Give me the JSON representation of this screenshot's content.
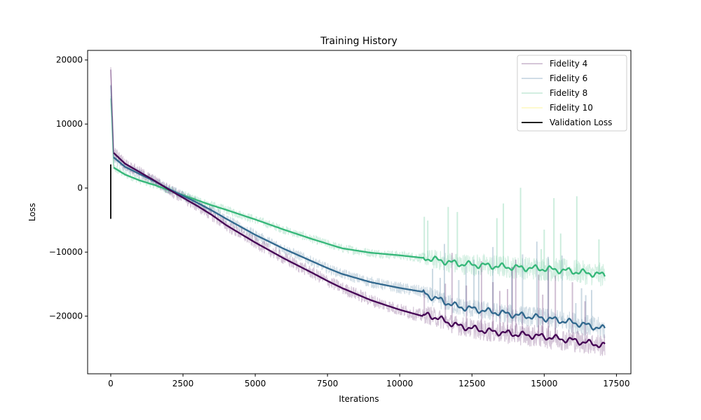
{
  "chart_data": {
    "type": "line",
    "title": "Training History",
    "xlabel": "Iterations",
    "ylabel": "Loss",
    "xlim": [
      -800,
      18000
    ],
    "ylim": [
      -29000,
      21500
    ],
    "xticks": [
      0,
      2500,
      5000,
      7500,
      10000,
      12500,
      15000,
      17500
    ],
    "yticks": [
      20000,
      10000,
      0,
      -10000,
      -20000
    ],
    "xtick_labels": [
      "0",
      "2500",
      "5000",
      "7500",
      "10000",
      "12500",
      "15000",
      "17500"
    ],
    "ytick_labels": [
      "20000",
      "10000",
      "0",
      "−10000",
      "−20000"
    ],
    "legend_position": "top-right",
    "grid": false,
    "series": [
      {
        "name": "Fidelity 4",
        "color": "#440154",
        "x": [
          0,
          100,
          500,
          1000,
          1500,
          2000,
          2500,
          3000,
          3500,
          4000,
          5000,
          6000,
          7000,
          7500,
          8000,
          9000,
          10000,
          10800,
          11000,
          12000,
          13000,
          14000,
          15000,
          16000,
          17100
        ],
        "smoothed": [
          18500,
          5500,
          3800,
          2500,
          1200,
          -200,
          -1500,
          -2800,
          -4200,
          -5800,
          -8500,
          -11000,
          -13300,
          -14500,
          -15600,
          -17500,
          -19000,
          -20000,
          -19800,
          -21500,
          -22300,
          -22800,
          -23200,
          -23800,
          -24600
        ],
        "spread": [
          1500,
          1200,
          900,
          900,
          900,
          1000,
          1000,
          1000,
          1000,
          1000,
          1000,
          1000,
          1000,
          1000,
          1000,
          1000,
          1000,
          1100,
          1500,
          1500,
          1700,
          1700,
          1800,
          1800,
          1800
        ]
      },
      {
        "name": "Fidelity 6",
        "color": "#31688e",
        "x": [
          0,
          100,
          500,
          1000,
          1500,
          2000,
          2500,
          3000,
          3500,
          4000,
          5000,
          6000,
          7000,
          7500,
          8000,
          9000,
          10000,
          10800,
          11000,
          12000,
          13000,
          14000,
          15000,
          16000,
          17100
        ],
        "smoothed": [
          16000,
          4800,
          3300,
          2200,
          1100,
          -100,
          -1200,
          -2300,
          -3500,
          -4800,
          -7300,
          -9500,
          -11500,
          -12500,
          -13400,
          -14700,
          -15600,
          -16200,
          -16800,
          -18500,
          -19200,
          -19800,
          -20300,
          -21000,
          -22000
        ],
        "spread": [
          1300,
          900,
          800,
          800,
          800,
          800,
          800,
          800,
          800,
          800,
          800,
          800,
          800,
          800,
          800,
          900,
          900,
          1000,
          1400,
          1500,
          1500,
          1600,
          1600,
          1700,
          1700
        ]
      },
      {
        "name": "Fidelity 8",
        "color": "#35b779",
        "x": [
          0,
          100,
          500,
          1000,
          1500,
          2000,
          2500,
          3000,
          3500,
          4000,
          5000,
          6000,
          7000,
          7500,
          8000,
          9000,
          10000,
          10800,
          11000,
          12000,
          13000,
          14000,
          15000,
          16000,
          17100
        ],
        "smoothed": [
          14000,
          3200,
          2100,
          1200,
          500,
          -300,
          -1100,
          -1900,
          -2700,
          -3400,
          -4900,
          -6500,
          -8000,
          -8700,
          -9400,
          -10100,
          -10500,
          -10900,
          -11000,
          -11800,
          -12100,
          -12400,
          -12600,
          -13000,
          -13600
        ],
        "spread": [
          1200,
          800,
          600,
          600,
          600,
          700,
          700,
          700,
          700,
          700,
          700,
          700,
          700,
          700,
          700,
          700,
          700,
          800,
          1500,
          1700,
          1800,
          1800,
          1900,
          1900,
          1900
        ]
      },
      {
        "name": "Fidelity 10",
        "color": "#fde725",
        "x": [],
        "smoothed": [],
        "spread": []
      }
    ],
    "validation": {
      "name": "Validation Loss",
      "color": "#000000",
      "x": [
        0,
        0
      ],
      "values": [
        3700,
        -4800
      ]
    }
  }
}
